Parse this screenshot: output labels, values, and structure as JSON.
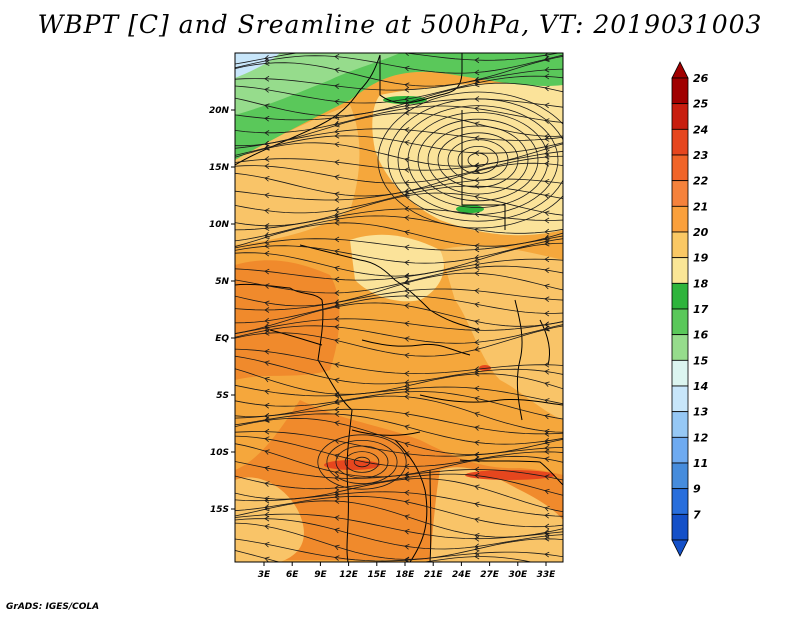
{
  "title": "WBPT [C] and Sreamline at 500hPa, VT: 2019031003",
  "footer": "GrADS: IGES/COLA",
  "map": {
    "lat_ticks": [
      "20N",
      "15N",
      "10N",
      "5N",
      "EQ",
      "5S",
      "10S",
      "15S"
    ],
    "lon_ticks": [
      "3E",
      "6E",
      "9E",
      "12E",
      "15E",
      "18E",
      "21E",
      "24E",
      "27E",
      "30E",
      "33E"
    ]
  },
  "colorbar": {
    "labels": [
      "26",
      "25",
      "24",
      "23",
      "22",
      "21",
      "20",
      "19",
      "18",
      "17",
      "16",
      "15",
      "14",
      "13",
      "12",
      "11",
      "9",
      "7"
    ],
    "colors": [
      "#a00000",
      "#c81e0f",
      "#e6461e",
      "#f06428",
      "#f5823c",
      "#faa03c",
      "#fac864",
      "#fae696",
      "#2eb43c",
      "#5ac85a",
      "#96dc8c",
      "#dcf5f0",
      "#c8e6fa",
      "#96c8f5",
      "#6eaaf0",
      "#468cdc",
      "#286edc",
      "#1450c8"
    ]
  },
  "colors": {
    "base_fill": "#f5a73c",
    "deep_orange": "#f08a2c",
    "light_orange": "#f9c468",
    "pale": "#fbe39a",
    "green_dark": "#2eb43c",
    "green_mid": "#5ac85a",
    "green_light": "#96dc8c",
    "blue_light": "#c8e6fa",
    "red": "#e6461e"
  }
}
